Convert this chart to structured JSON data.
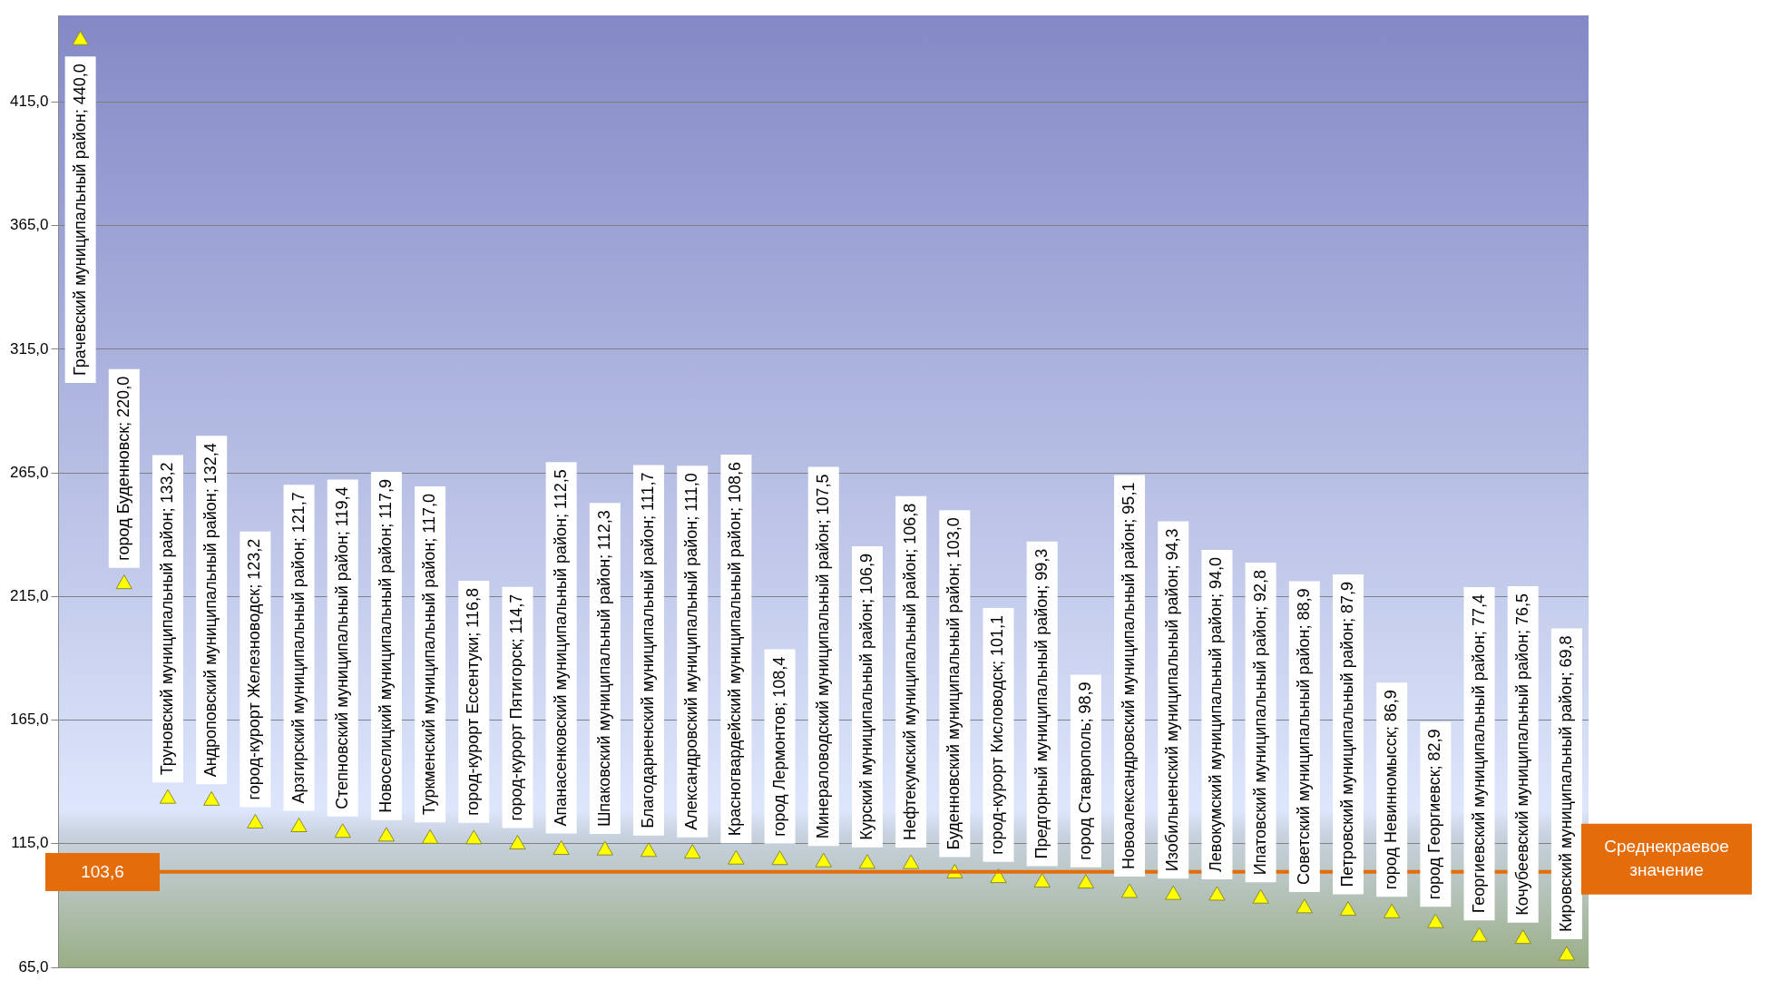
{
  "chart_data": {
    "type": "scatter",
    "categories": [
      null,
      null,
      null,
      null,
      null,
      null,
      null,
      null,
      null,
      null,
      null,
      null,
      null,
      null,
      null,
      null,
      null,
      null,
      null,
      null,
      null,
      null,
      null,
      null,
      null,
      null,
      null,
      null,
      null,
      null,
      null,
      null,
      null,
      null,
      null
    ],
    "values": [
      440.0,
      220.0,
      133.2,
      132.4,
      123.2,
      121.7,
      119.4,
      117.9,
      117.0,
      116.8,
      114.7,
      112.5,
      112.3,
      111.7,
      111.0,
      108.6,
      108.4,
      107.5,
      106.9,
      106.8,
      103.0,
      101.1,
      99.3,
      98.9,
      95.1,
      94.3,
      94.0,
      92.8,
      88.9,
      87.9,
      86.9,
      82.9,
      77.4,
      76.5,
      69.8
    ],
    "value_labels": [
      "Грачевский муниципальный район; 440,0",
      "город Буденновск; 220,0",
      "Труновский муниципальный район; 133,2",
      "Андроповский муниципальный район; 132,4",
      "город-курорт Железноводск; 123,2",
      "Арзгирский муниципальный район; 121,7",
      "Степновский муниципальный район; 119,4",
      "Новоселицкий муниципальный район; 117,9",
      "Туркменский муниципальный район; 117,0",
      "город-курорт Ессентуки; 116,8",
      "город-курорт Пятигорск; 114,7",
      "Апанасенковский муниципальный район; 112,5",
      "Шпаковский муниципальный район; 112,3",
      "Благодарненский муниципальный район; 111,7",
      "Александровский муниципальный район; 111,0",
      "Красногвардейский муниципальный район; 108,6",
      "город Лермонтов; 108,4",
      "Минераловодский муниципальный район; 107,5",
      "Курский муниципальный район; 106,9",
      "Нефтекумский муниципальный район; 106,8",
      "Буденновский муниципальный район; 103,0",
      "город-курорт Кисловодск; 101,1",
      "Предгорный муниципальный район; 99,3",
      "город Ставрополь; 98,9",
      "Новоалександровский муниципальный район; 95,1",
      "Изобильненский муниципальный район; 94,3",
      "Левокумский муниципальный район; 94,0",
      "Ипатовский муниципальный район; 92,8",
      "Советский муниципальный район; 88,9",
      "Петровский муниципальный район; 87,9",
      "город Невинномысск; 86,9",
      "город Георгиевск; 82,9",
      "Георгиевский муниципальный район; 77,4",
      "Кочубеевский муниципальный район; 76,5",
      "Кировский муниципальный район; 69,8"
    ],
    "color": "#ffff00",
    "marker": "triangle",
    "ylim": [
      65,
      450
    ],
    "yticks": [
      {
        "value": 65,
        "label": "65,0"
      },
      {
        "value": 115,
        "label": "115,0"
      },
      {
        "value": 165,
        "label": "165,0"
      },
      {
        "value": 215,
        "label": "215,0"
      },
      {
        "value": 265,
        "label": "265,0"
      },
      {
        "value": 315,
        "label": "315,0"
      },
      {
        "value": 365,
        "label": "365,0"
      },
      {
        "value": 415,
        "label": "415,0"
      }
    ],
    "grid": "y",
    "tick_labels": "y",
    "ref_lines": [
      {
        "axis": "y",
        "value": 103.6,
        "label": "Среднекраевое значение",
        "color": "#e46c0a"
      }
    ],
    "annotations": [
      {
        "text": "103,6",
        "y": 103.6
      }
    ]
  }
}
